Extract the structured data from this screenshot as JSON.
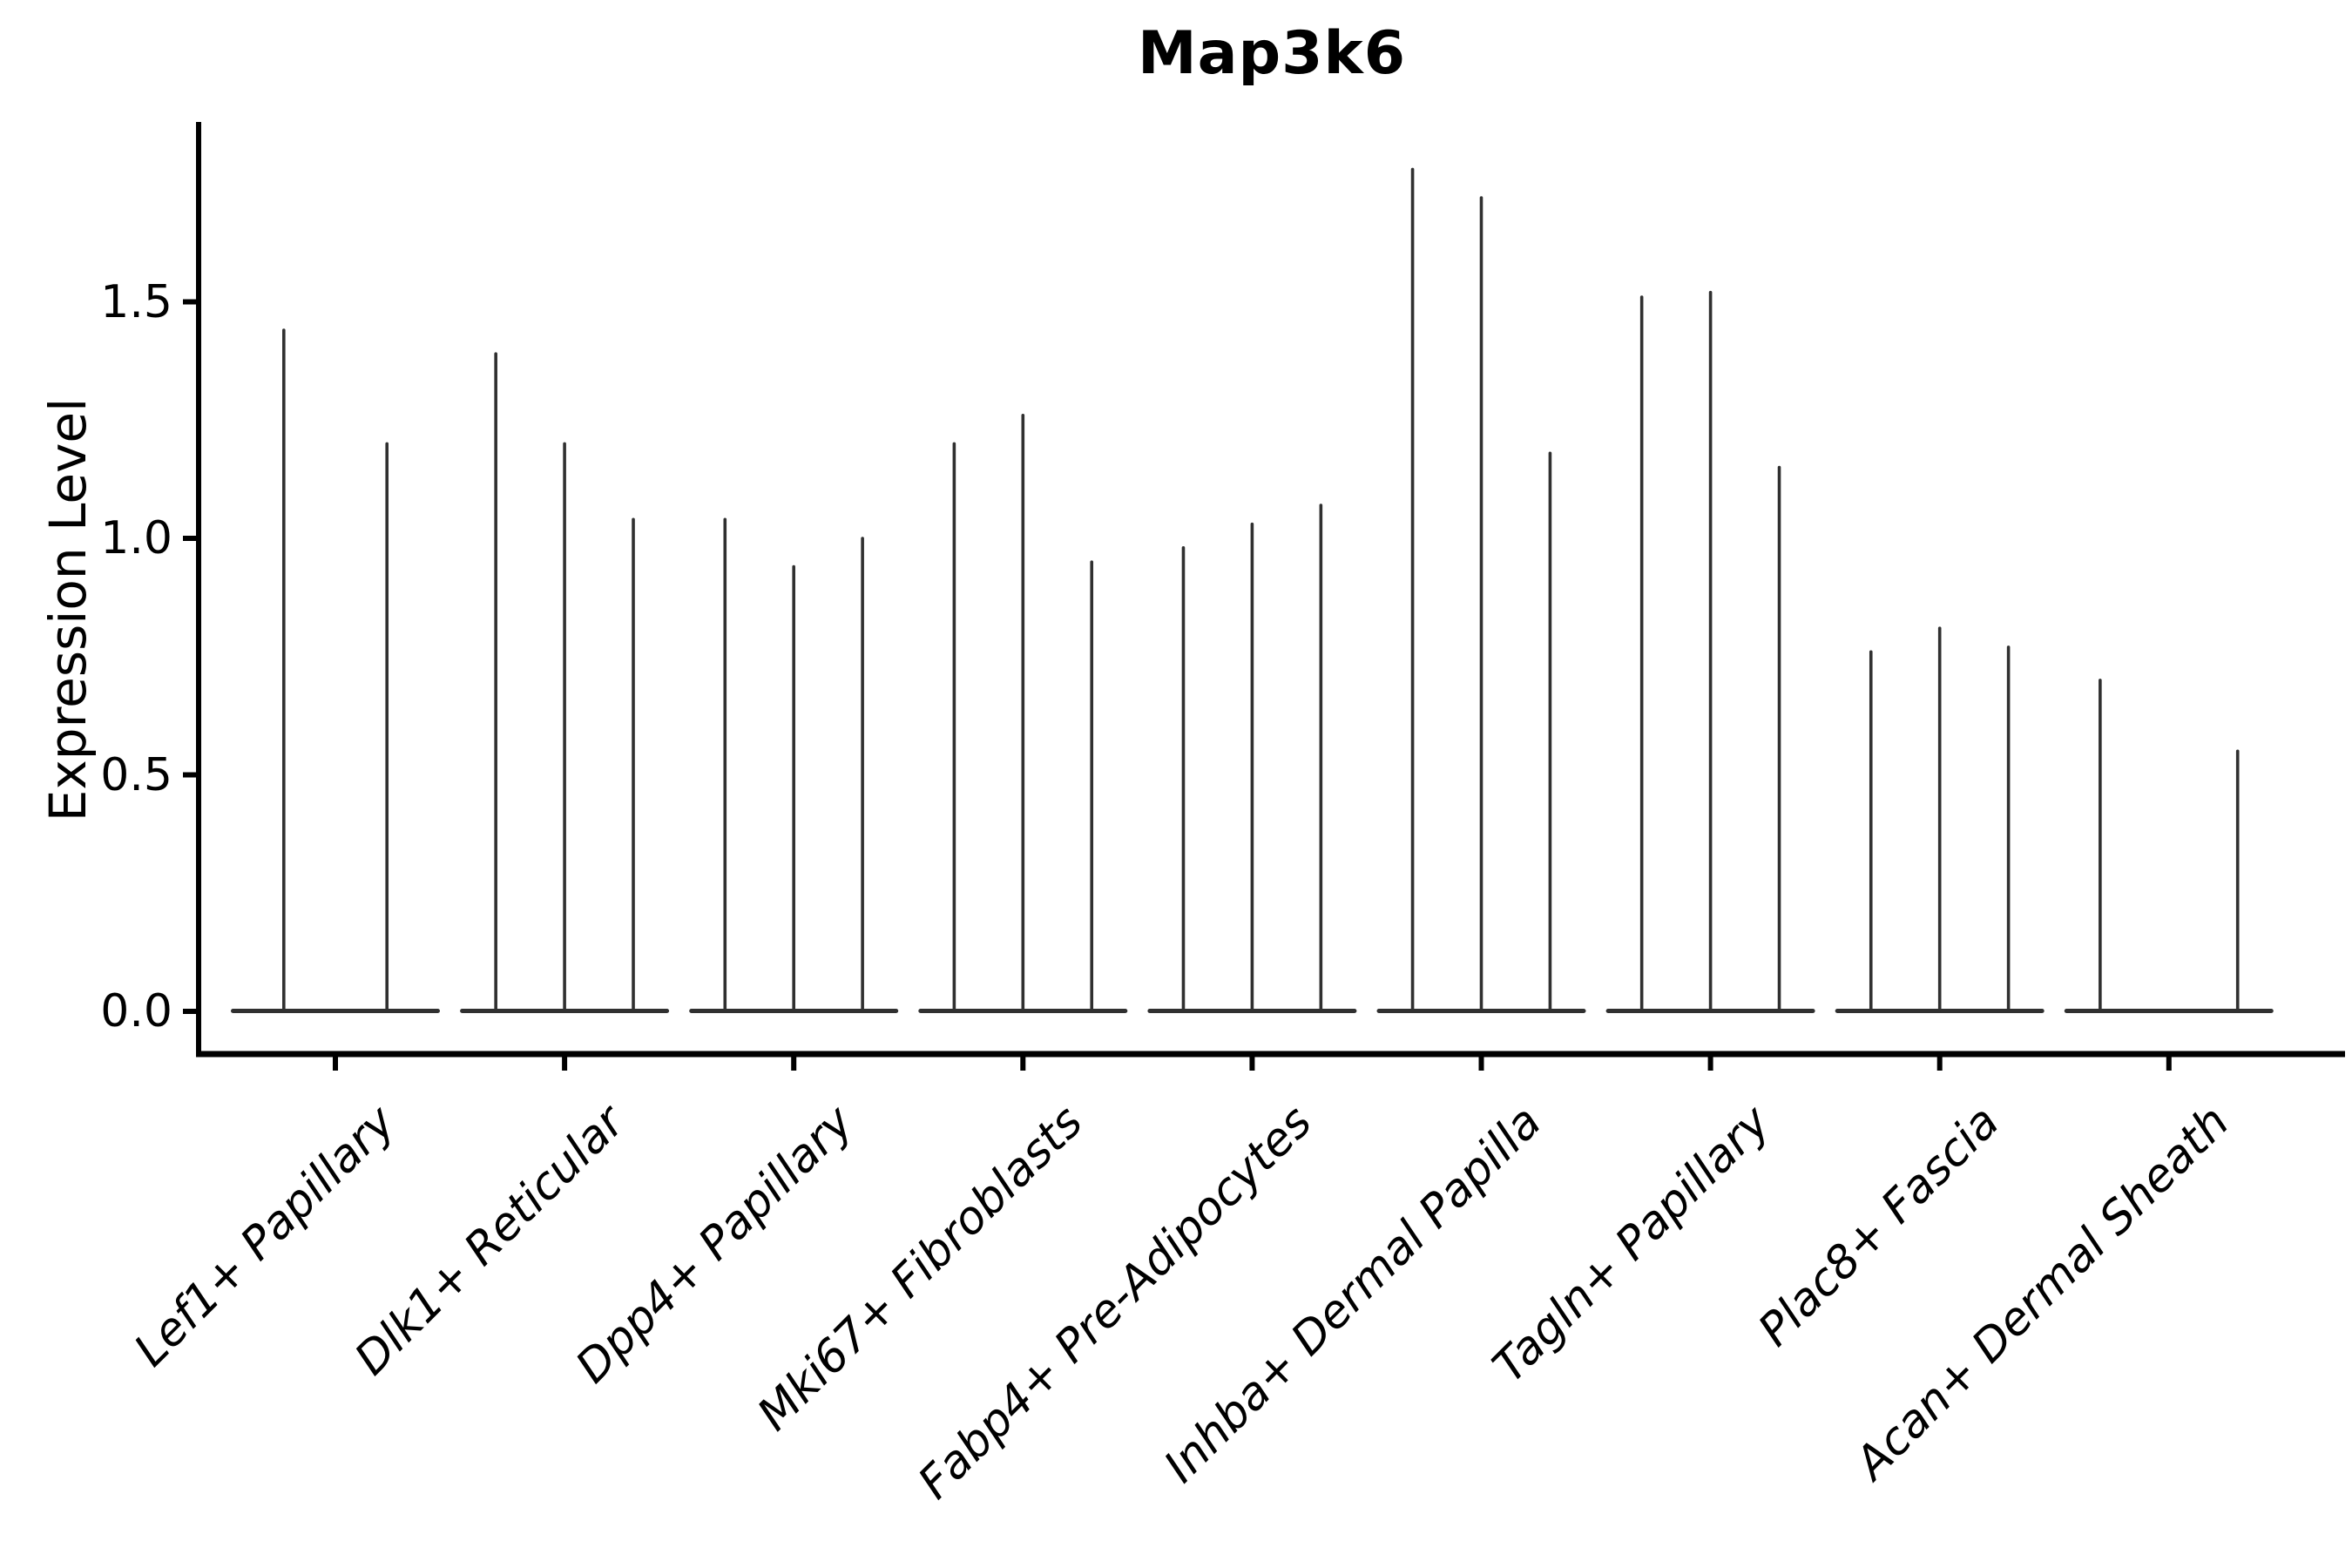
{
  "chart_data": {
    "type": "violin",
    "title": "Map3k6",
    "xlabel": "",
    "ylabel": "Expression Level",
    "ylim": [
      0,
      1.88
    ],
    "yticks": [
      0.0,
      0.5,
      1.0,
      1.5
    ],
    "ytick_labels": [
      "0.0",
      "0.5",
      "1.0",
      "1.5"
    ],
    "grid": false,
    "legend": "none",
    "categories": [
      "Lef1+ Papillary",
      "Dlk1+ Reticular",
      "Dpp4+ Papillary",
      "Mki67+ Fibroblasts",
      "Fabp4+ Pre-Adipocytes",
      "Inhba+ Dermal Papilla",
      "Tagln+ Papillary",
      "Plac8+ Fascia",
      "Acan+ Dermal Sheath"
    ],
    "groups": [
      {
        "category": "Lef1+ Papillary",
        "violins": [
          {
            "offset": -0.225,
            "max": 1.44
          },
          {
            "offset": 0.225,
            "max": 1.2
          }
        ]
      },
      {
        "category": "Dlk1+ Reticular",
        "violins": [
          {
            "offset": -0.3,
            "max": 1.39
          },
          {
            "offset": 0.0,
            "max": 1.2
          },
          {
            "offset": 0.3,
            "max": 1.04
          }
        ]
      },
      {
        "category": "Dpp4+ Papillary",
        "violins": [
          {
            "offset": -0.3,
            "max": 1.04
          },
          {
            "offset": 0.0,
            "max": 0.94
          },
          {
            "offset": 0.3,
            "max": 1.0
          }
        ]
      },
      {
        "category": "Mki67+ Fibroblasts",
        "violins": [
          {
            "offset": -0.3,
            "max": 1.2
          },
          {
            "offset": 0.0,
            "max": 1.26
          },
          {
            "offset": 0.3,
            "max": 0.95
          }
        ]
      },
      {
        "category": "Fabp4+ Pre-Adipocytes",
        "violins": [
          {
            "offset": -0.3,
            "max": 0.98
          },
          {
            "offset": 0.0,
            "max": 1.03
          },
          {
            "offset": 0.3,
            "max": 1.07
          }
        ]
      },
      {
        "category": "Inhba+ Dermal Papilla",
        "violins": [
          {
            "offset": -0.3,
            "max": 1.78
          },
          {
            "offset": 0.0,
            "max": 1.72
          },
          {
            "offset": 0.3,
            "max": 1.18
          }
        ]
      },
      {
        "category": "Tagln+ Papillary",
        "violins": [
          {
            "offset": -0.3,
            "max": 1.51
          },
          {
            "offset": 0.0,
            "max": 1.52
          },
          {
            "offset": 0.3,
            "max": 1.15
          }
        ]
      },
      {
        "category": "Plac8+ Fascia",
        "violins": [
          {
            "offset": -0.3,
            "max": 0.76
          },
          {
            "offset": 0.0,
            "max": 0.81
          },
          {
            "offset": 0.3,
            "max": 0.77
          }
        ]
      },
      {
        "category": "Acan+ Dermal Sheath",
        "violins": [
          {
            "offset": -0.3,
            "max": 0.7
          },
          {
            "offset": 0.3,
            "max": 0.55
          }
        ]
      }
    ],
    "colors": {
      "violin": "#303030",
      "axis": "#000000",
      "text": "#000000",
      "background": "#ffffff"
    }
  }
}
